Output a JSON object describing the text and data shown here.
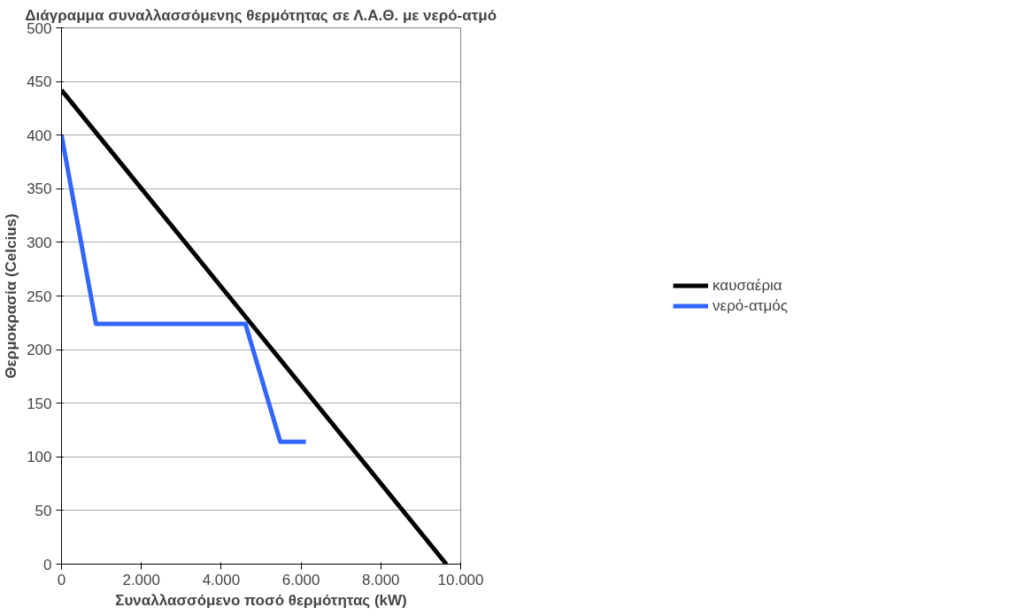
{
  "chart_data": {
    "type": "line",
    "title": "Διάγραμμα συναλλασσόμενης θερμότητας σε Λ.Α.Θ. με νερό-ατμό",
    "xlabel": "Συναλλασσόμενο ποσό θερμότητας (kW)",
    "ylabel": "Θερμοκρασία (Celcius)",
    "series": [
      {
        "name": "καυσαέρια",
        "color": "#000000",
        "x": [
          0,
          9640
        ],
        "values": [
          442,
          0
        ]
      },
      {
        "name": "νερό-ατμός",
        "color": "#3366ff",
        "x": [
          0,
          863,
          4607,
          5481,
          6121
        ],
        "values": [
          400,
          224,
          224,
          114,
          114
        ]
      }
    ],
    "xlim": [
      0,
      10000
    ],
    "xticks": [
      0,
      {
        "value": 2000,
        "label": "2.000"
      },
      {
        "value": 4000,
        "label": "4.000"
      },
      {
        "value": 6000,
        "label": "6.000"
      },
      {
        "value": 8000,
        "label": "8.000"
      },
      {
        "value": 10000,
        "label": "10.000"
      }
    ],
    "ylim": [
      0,
      500
    ],
    "yticks": [
      0,
      50,
      100,
      150,
      200,
      250,
      300,
      350,
      400,
      450,
      500
    ],
    "grid": "y",
    "legend": "right",
    "marker": "none",
    "line_style": "solid"
  }
}
